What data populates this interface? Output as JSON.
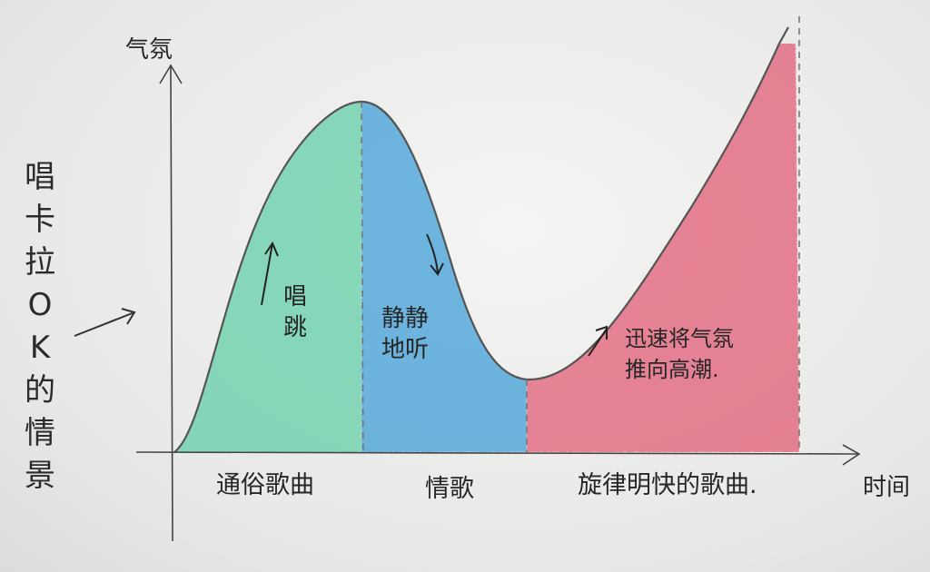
{
  "axes": {
    "y_label": "气氛",
    "x_label": "时间"
  },
  "side_label": "唱卡拉OK的情景",
  "phases": [
    {
      "label": "通俗歌曲",
      "note": "唱\n跳",
      "trend": "up",
      "color": "#5fcfa6"
    },
    {
      "label": "情歌",
      "note": "静静\n地听",
      "trend": "down",
      "color": "#3a9ed8"
    },
    {
      "label": "旋律明快的歌曲.",
      "note": "迅速将气氛\n推向高潮.",
      "trend": "up",
      "color": "#e0405e"
    }
  ]
}
